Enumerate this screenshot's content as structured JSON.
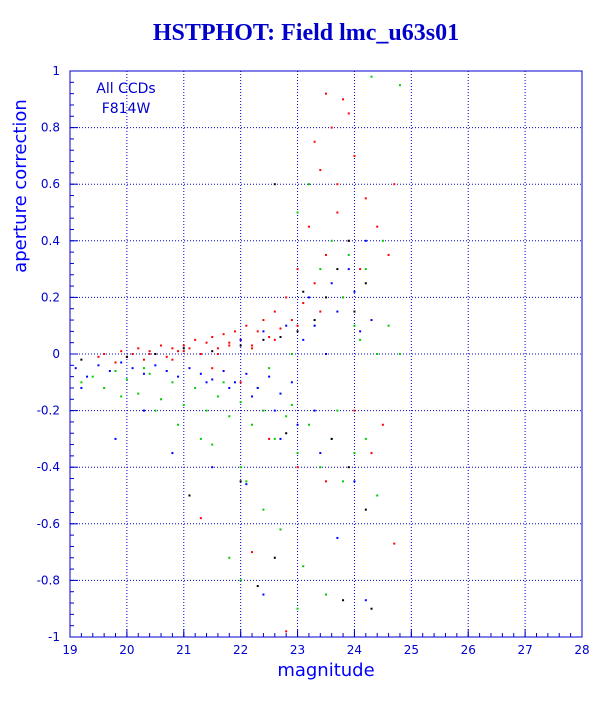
{
  "chart_data": {
    "type": "scatter",
    "title": "HSTPHOT: Field lmc_u63s01",
    "xlabel": "magnitude",
    "ylabel": "aperture correction",
    "xlim": [
      19,
      28
    ],
    "ylim": [
      -1,
      1
    ],
    "xticks": [
      "19",
      "20",
      "21",
      "22",
      "23",
      "24",
      "25",
      "26",
      "27",
      "28"
    ],
    "yticks": [
      "-1",
      "-0.8",
      "-0.6",
      "-0.4",
      "-0.2",
      "0",
      "0.2",
      "0.4",
      "0.6",
      "0.8",
      "1"
    ],
    "grid": true,
    "annotations": [
      "All CCDs",
      "F814W"
    ],
    "series_colors": [
      "#ff0000",
      "#00cc00",
      "#0000ff",
      "#000000"
    ],
    "series": [
      {
        "color": "#ff0000",
        "points": [
          [
            19.5,
            -0.01
          ],
          [
            19.6,
            0.0
          ],
          [
            19.8,
            -0.03
          ],
          [
            19.9,
            0.01
          ],
          [
            20.0,
            -0.01
          ],
          [
            20.1,
            0.0
          ],
          [
            20.2,
            0.02
          ],
          [
            20.3,
            -0.02
          ],
          [
            20.4,
            0.01
          ],
          [
            20.5,
            0.0
          ],
          [
            20.6,
            0.03
          ],
          [
            20.7,
            -0.01
          ],
          [
            20.8,
            0.02
          ],
          [
            20.9,
            0.01
          ],
          [
            21.0,
            0.03
          ],
          [
            21.1,
            0.02
          ],
          [
            21.2,
            0.05
          ],
          [
            21.3,
            0.0
          ],
          [
            21.4,
            0.04
          ],
          [
            21.5,
            0.06
          ],
          [
            21.6,
            0.02
          ],
          [
            21.7,
            0.07
          ],
          [
            21.8,
            0.03
          ],
          [
            21.9,
            0.08
          ],
          [
            22.0,
            0.05
          ],
          [
            22.1,
            0.1
          ],
          [
            22.2,
            0.03
          ],
          [
            22.3,
            0.08
          ],
          [
            22.4,
            0.12
          ],
          [
            22.5,
            0.06
          ],
          [
            22.6,
            0.15
          ],
          [
            22.7,
            0.09
          ],
          [
            22.8,
            0.2
          ],
          [
            22.9,
            0.12
          ],
          [
            23.0,
            0.3
          ],
          [
            23.1,
            0.18
          ],
          [
            23.2,
            0.45
          ],
          [
            23.3,
            0.25
          ],
          [
            23.4,
            0.65
          ],
          [
            23.5,
            0.35
          ],
          [
            23.6,
            0.8
          ],
          [
            23.7,
            0.5
          ],
          [
            23.8,
            0.9
          ],
          [
            23.9,
            0.4
          ],
          [
            24.0,
            0.7
          ],
          [
            24.1,
            0.3
          ],
          [
            24.2,
            0.55
          ],
          [
            24.4,
            0.45
          ],
          [
            24.6,
            0.35
          ],
          [
            24.7,
            0.6
          ],
          [
            23.3,
            0.75
          ],
          [
            23.5,
            0.92
          ],
          [
            23.7,
            0.6
          ],
          [
            23.9,
            0.85
          ],
          [
            21.5,
            -0.05
          ],
          [
            22.0,
            -0.1
          ],
          [
            22.5,
            -0.3
          ],
          [
            23.0,
            -0.4
          ],
          [
            23.5,
            -0.45
          ],
          [
            24.0,
            -0.2
          ],
          [
            24.3,
            -0.35
          ],
          [
            24.5,
            -0.25
          ],
          [
            21.3,
            -0.58
          ],
          [
            22.2,
            -0.7
          ],
          [
            22.8,
            -0.98
          ],
          [
            24.7,
            -0.67
          ],
          [
            20.4,
            0.0
          ],
          [
            20.8,
            -0.02
          ],
          [
            21.0,
            0.01
          ],
          [
            21.6,
            0.0
          ],
          [
            21.8,
            0.04
          ],
          [
            22.2,
            0.02
          ],
          [
            22.6,
            0.05
          ],
          [
            23.0,
            0.1
          ],
          [
            23.4,
            0.15
          ],
          [
            23.8,
            0.2
          ]
        ]
      },
      {
        "color": "#00cc00",
        "points": [
          [
            19.2,
            -0.1
          ],
          [
            19.4,
            -0.08
          ],
          [
            19.6,
            -0.12
          ],
          [
            19.8,
            -0.06
          ],
          [
            20.0,
            -0.09
          ],
          [
            20.2,
            -0.14
          ],
          [
            20.4,
            -0.07
          ],
          [
            20.6,
            -0.16
          ],
          [
            20.8,
            -0.1
          ],
          [
            21.0,
            -0.18
          ],
          [
            21.2,
            -0.12
          ],
          [
            21.4,
            -0.2
          ],
          [
            21.6,
            -0.15
          ],
          [
            21.8,
            -0.22
          ],
          [
            22.0,
            -0.17
          ],
          [
            22.2,
            -0.25
          ],
          [
            22.4,
            -0.2
          ],
          [
            22.6,
            -0.3
          ],
          [
            22.8,
            -0.22
          ],
          [
            23.0,
            -0.35
          ],
          [
            23.2,
            -0.25
          ],
          [
            23.4,
            -0.4
          ],
          [
            23.6,
            -0.3
          ],
          [
            23.8,
            -0.45
          ],
          [
            24.0,
            -0.35
          ],
          [
            24.2,
            -0.3
          ],
          [
            24.4,
            -0.5
          ],
          [
            22.1,
            -0.45
          ],
          [
            22.4,
            -0.55
          ],
          [
            22.7,
            -0.62
          ],
          [
            23.1,
            -0.75
          ],
          [
            23.5,
            -0.85
          ],
          [
            21.8,
            -0.72
          ],
          [
            22.0,
            -0.4
          ],
          [
            21.5,
            -0.32
          ],
          [
            23.0,
            0.5
          ],
          [
            23.2,
            0.6
          ],
          [
            23.4,
            0.3
          ],
          [
            23.6,
            0.4
          ],
          [
            23.8,
            0.2
          ],
          [
            24.0,
            0.1
          ],
          [
            24.2,
            0.3
          ],
          [
            24.4,
            0.0
          ],
          [
            24.6,
            0.1
          ],
          [
            24.8,
            0.95
          ],
          [
            24.3,
            0.98
          ],
          [
            23.9,
            0.35
          ],
          [
            23.3,
            0.1
          ],
          [
            22.9,
            0.0
          ],
          [
            22.5,
            -0.05
          ],
          [
            20.5,
            -0.2
          ],
          [
            20.3,
            -0.05
          ],
          [
            19.9,
            -0.15
          ],
          [
            20.9,
            -0.25
          ],
          [
            21.3,
            -0.3
          ],
          [
            21.7,
            -0.1
          ],
          [
            22.3,
            -0.12
          ],
          [
            22.9,
            -0.18
          ],
          [
            23.7,
            -0.2
          ],
          [
            24.1,
            0.05
          ],
          [
            22.0,
            -0.8
          ],
          [
            23.0,
            -0.9
          ],
          [
            24.5,
            0.4
          ],
          [
            24.8,
            0.0
          ]
        ]
      },
      {
        "color": "#0000ff",
        "points": [
          [
            19.1,
            -0.05
          ],
          [
            19.3,
            -0.08
          ],
          [
            19.5,
            -0.04
          ],
          [
            19.7,
            -0.06
          ],
          [
            19.9,
            -0.03
          ],
          [
            20.1,
            -0.05
          ],
          [
            20.3,
            -0.07
          ],
          [
            20.5,
            -0.04
          ],
          [
            20.7,
            -0.06
          ],
          [
            20.9,
            -0.08
          ],
          [
            21.1,
            -0.05
          ],
          [
            21.3,
            -0.07
          ],
          [
            21.5,
            -0.09
          ],
          [
            21.7,
            -0.06
          ],
          [
            21.9,
            -0.1
          ],
          [
            22.1,
            -0.07
          ],
          [
            22.3,
            -0.12
          ],
          [
            22.5,
            -0.08
          ],
          [
            22.7,
            -0.14
          ],
          [
            22.9,
            -0.1
          ],
          [
            23.1,
            0.05
          ],
          [
            23.3,
            0.1
          ],
          [
            23.5,
            0.0
          ],
          [
            23.7,
            0.15
          ],
          [
            23.9,
            0.3
          ],
          [
            24.1,
            0.08
          ],
          [
            24.3,
            0.12
          ],
          [
            22.0,
            0.05
          ],
          [
            22.4,
            0.08
          ],
          [
            22.8,
            0.1
          ],
          [
            23.2,
            0.2
          ],
          [
            23.6,
            0.25
          ],
          [
            24.0,
            0.22
          ],
          [
            24.2,
            0.4
          ],
          [
            23.0,
            -0.25
          ],
          [
            23.4,
            -0.35
          ],
          [
            22.6,
            -0.2
          ],
          [
            22.2,
            -0.15
          ],
          [
            21.8,
            -0.12
          ],
          [
            21.4,
            -0.1
          ],
          [
            19.2,
            -0.12
          ],
          [
            19.8,
            -0.3
          ],
          [
            20.3,
            -0.2
          ],
          [
            20.8,
            -0.35
          ],
          [
            21.5,
            -0.4
          ],
          [
            22.1,
            -0.46
          ],
          [
            22.7,
            -0.3
          ],
          [
            23.3,
            -0.2
          ],
          [
            24.0,
            -0.45
          ],
          [
            24.2,
            -0.87
          ],
          [
            22.4,
            -0.85
          ],
          [
            23.7,
            -0.65
          ]
        ]
      },
      {
        "color": "#000000",
        "points": [
          [
            19.2,
            -0.02
          ],
          [
            20.0,
            -0.01
          ],
          [
            20.5,
            0.0
          ],
          [
            21.0,
            0.02
          ],
          [
            21.5,
            0.01
          ],
          [
            22.0,
            0.03
          ],
          [
            22.4,
            0.05
          ],
          [
            22.7,
            0.06
          ],
          [
            23.0,
            0.08
          ],
          [
            23.3,
            0.12
          ],
          [
            23.5,
            0.2
          ],
          [
            23.7,
            0.3
          ],
          [
            23.9,
            0.4
          ],
          [
            24.0,
            0.15
          ],
          [
            22.6,
            0.6
          ],
          [
            23.6,
            -0.3
          ],
          [
            23.9,
            -0.4
          ],
          [
            24.2,
            -0.55
          ],
          [
            22.3,
            -0.82
          ],
          [
            22.6,
            -0.72
          ],
          [
            23.8,
            -0.87
          ],
          [
            24.3,
            -0.9
          ],
          [
            21.1,
            -0.5
          ],
          [
            22.0,
            -0.45
          ],
          [
            22.8,
            -0.28
          ],
          [
            24.2,
            0.25
          ],
          [
            23.1,
            0.22
          ]
        ]
      }
    ]
  }
}
